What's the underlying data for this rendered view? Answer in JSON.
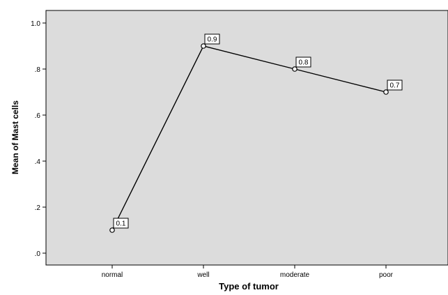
{
  "chart_data": {
    "type": "line",
    "title": "",
    "xlabel": "Type of tumor",
    "ylabel": "Mean of Mast cells",
    "categories": [
      "normal",
      "well",
      "moderate",
      "poor"
    ],
    "series": [
      {
        "values": [
          0.1,
          0.9,
          0.8,
          0.7
        ]
      }
    ],
    "data_labels": [
      "0.1",
      "0.9",
      "0.8",
      "0.7"
    ],
    "ylim": [
      0,
      1.0
    ],
    "yticks": [
      0,
      0.2,
      0.4,
      0.6,
      0.8,
      1.0
    ],
    "ytick_labels": [
      ".0",
      ".2",
      ".4",
      ".6",
      ".8",
      "1.0"
    ],
    "grid": false,
    "legend": "none",
    "colors": {
      "plot_background": "#dcdcdc",
      "line": "#000000",
      "marker_fill": "#ffffff",
      "label_box": "#ffffff"
    }
  }
}
